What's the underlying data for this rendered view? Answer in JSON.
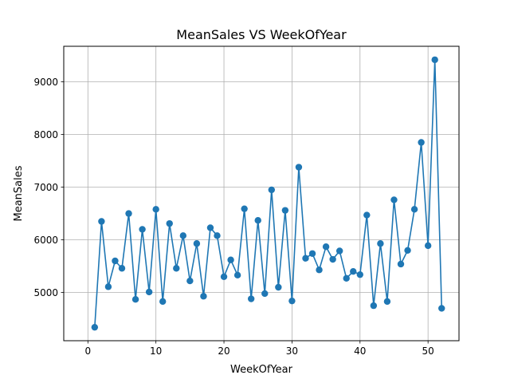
{
  "chart_data": {
    "type": "line",
    "title": "MeanSales VS WeekOfYear",
    "xlabel": "WeekOfYear",
    "ylabel": "MeanSales",
    "xlim": [
      -3.55,
      54.55
    ],
    "ylim": [
      4085,
      9676
    ],
    "xticks": [
      0,
      10,
      20,
      30,
      40,
      50
    ],
    "yticks": [
      5000,
      6000,
      7000,
      8000,
      9000
    ],
    "grid": true,
    "marker": "circle",
    "color": "#1f77b4",
    "x": [
      1,
      2,
      3,
      4,
      5,
      6,
      7,
      8,
      9,
      10,
      11,
      12,
      13,
      14,
      15,
      16,
      17,
      18,
      19,
      20,
      21,
      22,
      23,
      24,
      25,
      26,
      27,
      28,
      29,
      30,
      31,
      32,
      33,
      34,
      35,
      36,
      37,
      38,
      39,
      40,
      41,
      42,
      43,
      44,
      45,
      46,
      47,
      48,
      49,
      50,
      51,
      52
    ],
    "y": [
      4340,
      6350,
      5110,
      5600,
      5460,
      6500,
      4870,
      6200,
      5010,
      6580,
      4830,
      6310,
      5460,
      6080,
      5220,
      5930,
      4930,
      6230,
      6080,
      5300,
      5620,
      5330,
      6590,
      4880,
      6370,
      4980,
      6950,
      5100,
      6560,
      4840,
      7380,
      5650,
      5740,
      5430,
      5870,
      5630,
      5790,
      5270,
      5400,
      5340,
      6470,
      4750,
      5930,
      4830,
      6760,
      5540,
      5800,
      6580,
      7850,
      5890,
      9420,
      4700
    ]
  }
}
